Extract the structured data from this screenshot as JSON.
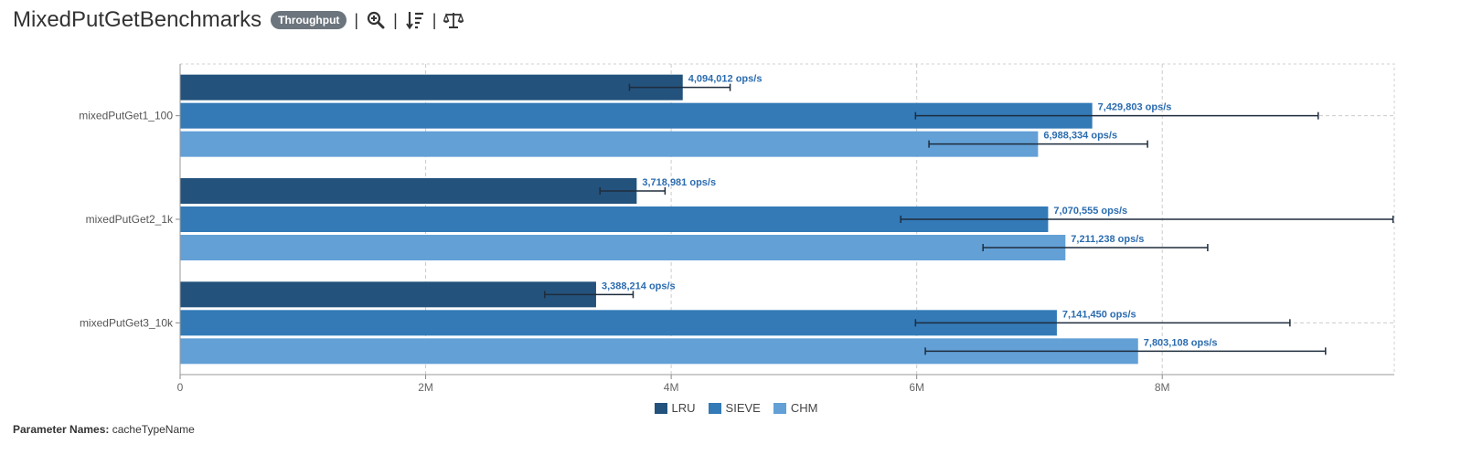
{
  "header": {
    "title": "MixedPutGetBenchmarks",
    "badge_label": "Throughput",
    "separator": "|",
    "icons": [
      "zoom-in-icon",
      "sort-icon",
      "balance-scale-icon"
    ]
  },
  "chart_data": {
    "type": "bar",
    "orientation": "horizontal",
    "categories": [
      "mixedPutGet1_100",
      "mixedPutGet2_1k",
      "mixedPutGet3_10k"
    ],
    "series": [
      {
        "name": "LRU",
        "color": "#23527c",
        "values": [
          4094012,
          3718981,
          3388214
        ],
        "error_low": [
          3660000,
          3420000,
          2970000
        ],
        "error_high": [
          4480000,
          3950000,
          3690000
        ],
        "labels": [
          "4,094,012 ops/s",
          "3,718,981 ops/s",
          "3,388,214 ops/s"
        ]
      },
      {
        "name": "SIEVE",
        "color": "#337ab7",
        "values": [
          7429803,
          7070555,
          7141450
        ],
        "error_low": [
          5990000,
          5870000,
          5990000
        ],
        "error_high": [
          9270000,
          9880000,
          9040000
        ],
        "labels": [
          "7,429,803 ops/s",
          "7,070,555 ops/s",
          "7,141,450 ops/s"
        ]
      },
      {
        "name": "CHM",
        "color": "#62a0d6",
        "values": [
          6988334,
          7211238,
          7803108
        ],
        "error_low": [
          6100000,
          6540000,
          6070000
        ],
        "error_high": [
          7880000,
          8370000,
          9330000
        ],
        "labels": [
          "6,988,334 ops/s",
          "7,211,238 ops/s",
          "7,803,108 ops/s"
        ]
      }
    ],
    "x_ticks": [
      0,
      2000000,
      4000000,
      6000000,
      8000000
    ],
    "x_tick_labels": [
      "0",
      "2M",
      "4M",
      "6M",
      "8M"
    ],
    "xlim": [
      0,
      9890000
    ],
    "grid": true,
    "legend_position": "bottom-center",
    "label_color": "#2b6cb0"
  },
  "footer": {
    "param_label": "Parameter Names:",
    "param_value": "cacheTypeName"
  }
}
